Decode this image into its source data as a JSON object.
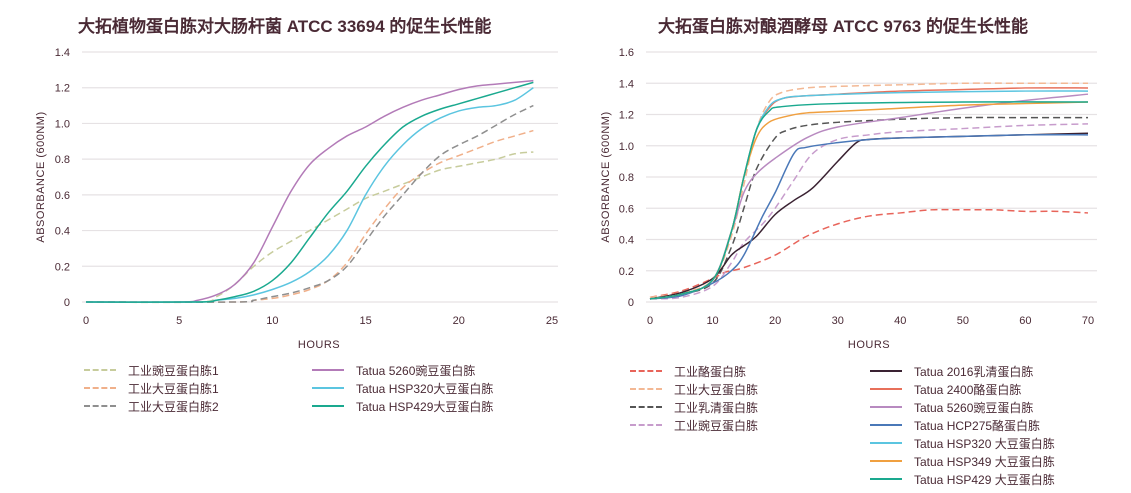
{
  "chart_data": [
    {
      "type": "line",
      "title": "大拓植物蛋白胨对大肠杆菌 ATCC 33694 的促生长性能",
      "xlabel": "HOURS",
      "ylabel": "ABSORBANCE (600NM)",
      "xlim": [
        0,
        25
      ],
      "ylim": [
        0,
        1.4
      ],
      "xticks": [
        0,
        5,
        10,
        15,
        20,
        25
      ],
      "yticks": [
        0,
        0.2,
        0.4,
        0.6,
        0.8,
        1.0,
        1.2,
        1.4
      ],
      "ytick_labels": [
        "0",
        "0.2",
        "0.4",
        "0.6",
        "0.8",
        "1.0",
        "1.2",
        "1.4"
      ],
      "grid": "horizontal",
      "legend": "bottom",
      "series": [
        {
          "name": "工业豌豆蛋白胨1",
          "style": "dashed",
          "color": "#c7cc9c",
          "x": [
            0,
            6,
            7,
            8,
            9,
            10,
            11,
            12,
            13,
            14,
            15,
            16,
            17,
            18,
            19,
            20,
            21,
            22,
            23,
            24
          ],
          "y": [
            0,
            0,
            0.03,
            0.1,
            0.2,
            0.28,
            0.34,
            0.4,
            0.46,
            0.52,
            0.58,
            0.62,
            0.66,
            0.7,
            0.74,
            0.76,
            0.78,
            0.8,
            0.83,
            0.84
          ]
        },
        {
          "name": "工业大豆蛋白胨1",
          "style": "dashed",
          "color": "#f0b08a",
          "x": [
            0,
            8,
            9,
            10,
            11,
            12,
            13,
            14,
            15,
            16,
            17,
            18,
            19,
            20,
            21,
            22,
            23,
            24
          ],
          "y": [
            0,
            0,
            0.01,
            0.02,
            0.04,
            0.07,
            0.12,
            0.22,
            0.38,
            0.52,
            0.64,
            0.72,
            0.78,
            0.82,
            0.86,
            0.9,
            0.93,
            0.96
          ]
        },
        {
          "name": "工业大豆蛋白胨2",
          "style": "dashed",
          "color": "#8f8f8f",
          "x": [
            0,
            8,
            9,
            10,
            11,
            12,
            13,
            14,
            15,
            16,
            17,
            18,
            19,
            20,
            21,
            22,
            23,
            24
          ],
          "y": [
            0,
            0,
            0.01,
            0.03,
            0.05,
            0.08,
            0.12,
            0.2,
            0.34,
            0.48,
            0.6,
            0.72,
            0.82,
            0.88,
            0.93,
            0.99,
            1.05,
            1.1
          ]
        },
        {
          "name": "Tatua 5260豌豆蛋白胨",
          "style": "solid",
          "color": "#b37bb8",
          "x": [
            0,
            5,
            6,
            7,
            8,
            9,
            10,
            11,
            12,
            13,
            14,
            15,
            16,
            17,
            18,
            19,
            20,
            21,
            22,
            23,
            24
          ],
          "y": [
            0,
            0,
            0.01,
            0.04,
            0.1,
            0.22,
            0.42,
            0.62,
            0.77,
            0.86,
            0.93,
            0.98,
            1.04,
            1.09,
            1.13,
            1.16,
            1.19,
            1.21,
            1.22,
            1.23,
            1.24
          ]
        },
        {
          "name": "Tatua HSP320大豆蛋白胨",
          "style": "solid",
          "color": "#5bc5e0",
          "x": [
            0,
            6,
            7,
            8,
            9,
            10,
            11,
            12,
            13,
            14,
            15,
            16,
            17,
            18,
            19,
            20,
            21,
            22,
            23,
            24
          ],
          "y": [
            0,
            0,
            0.01,
            0.02,
            0.04,
            0.07,
            0.11,
            0.17,
            0.26,
            0.4,
            0.6,
            0.76,
            0.88,
            0.97,
            1.03,
            1.07,
            1.09,
            1.1,
            1.13,
            1.2
          ]
        },
        {
          "name": "Tatua HSP429大豆蛋白胨",
          "style": "solid",
          "color": "#1aa98f",
          "x": [
            0,
            6,
            7,
            8,
            9,
            10,
            11,
            12,
            13,
            14,
            15,
            16,
            17,
            18,
            19,
            20,
            21,
            22,
            23,
            24
          ],
          "y": [
            0,
            0,
            0.01,
            0.03,
            0.06,
            0.12,
            0.22,
            0.36,
            0.5,
            0.62,
            0.76,
            0.88,
            0.98,
            1.04,
            1.08,
            1.11,
            1.14,
            1.17,
            1.2,
            1.23
          ]
        }
      ]
    },
    {
      "type": "line",
      "title": "大拓蛋白胨对酿酒酵母 ATCC 9763 的促生长性能",
      "xlabel": "HOURS",
      "ylabel": "ABSORBANCE (600NM)",
      "xlim": [
        0,
        70
      ],
      "ylim": [
        0,
        1.6
      ],
      "xticks": [
        0,
        10,
        20,
        30,
        40,
        50,
        60,
        70
      ],
      "yticks": [
        0,
        0.2,
        0.4,
        0.6,
        0.8,
        1.0,
        1.2,
        1.4,
        1.6
      ],
      "ytick_labels": [
        "0",
        "0.2",
        "0.4",
        "0.6",
        "0.8",
        "1.0",
        "1.2",
        "1.4",
        "1.6"
      ],
      "grid": "horizontal",
      "legend": "bottom",
      "series": [
        {
          "name": "工业酪蛋白胨",
          "style": "dashed",
          "color": "#e8645a",
          "x": [
            0,
            5,
            10,
            12,
            15,
            20,
            25,
            30,
            35,
            40,
            45,
            50,
            55,
            60,
            65,
            70
          ],
          "y": [
            0.03,
            0.07,
            0.15,
            0.19,
            0.22,
            0.3,
            0.42,
            0.5,
            0.55,
            0.57,
            0.59,
            0.59,
            0.59,
            0.58,
            0.58,
            0.57
          ]
        },
        {
          "name": "工业大豆蛋白胨",
          "style": "dashed",
          "color": "#f3b894",
          "x": [
            0,
            5,
            10,
            13,
            15,
            17,
            19,
            21,
            25,
            30,
            40,
            50,
            60,
            70
          ],
          "y": [
            0.03,
            0.06,
            0.14,
            0.42,
            0.75,
            1.1,
            1.28,
            1.34,
            1.37,
            1.38,
            1.39,
            1.4,
            1.4,
            1.4
          ]
        },
        {
          "name": "工业乳清蛋白胨",
          "style": "dashed",
          "color": "#555555",
          "x": [
            0,
            5,
            10,
            13,
            15,
            17,
            20,
            22,
            25,
            30,
            40,
            50,
            60,
            70
          ],
          "y": [
            0.02,
            0.05,
            0.12,
            0.35,
            0.6,
            0.85,
            1.05,
            1.1,
            1.13,
            1.15,
            1.17,
            1.18,
            1.18,
            1.18
          ]
        },
        {
          "name": "工业豌豆蛋白胨",
          "style": "dashed",
          "color": "#c79ccc",
          "x": [
            0,
            5,
            10,
            13,
            15,
            18,
            20,
            23,
            26,
            30,
            35,
            40,
            50,
            60,
            70
          ],
          "y": [
            0.02,
            0.03,
            0.1,
            0.25,
            0.38,
            0.5,
            0.6,
            0.78,
            0.95,
            1.04,
            1.07,
            1.09,
            1.11,
            1.13,
            1.14
          ]
        },
        {
          "name": "Tatua 2016乳清蛋白胨",
          "style": "solid",
          "color": "#3a2232",
          "x": [
            0,
            5,
            10,
            13,
            15,
            17,
            20,
            23,
            26,
            30,
            33,
            35,
            40,
            50,
            60,
            70
          ],
          "y": [
            0.02,
            0.06,
            0.15,
            0.3,
            0.36,
            0.42,
            0.56,
            0.65,
            0.73,
            0.9,
            1.02,
            1.04,
            1.05,
            1.06,
            1.07,
            1.08
          ]
        },
        {
          "name": "Tatua 2400酪蛋白胨",
          "style": "solid",
          "color": "#e8705a",
          "x": [
            0,
            5,
            10,
            13,
            15,
            17,
            19,
            21,
            25,
            30,
            40,
            50,
            60,
            70
          ],
          "y": [
            0.02,
            0.05,
            0.14,
            0.45,
            0.8,
            1.1,
            1.24,
            1.3,
            1.32,
            1.33,
            1.35,
            1.36,
            1.37,
            1.37
          ]
        },
        {
          "name": "Tatua 5260豌豆蛋白胨",
          "style": "solid",
          "color": "#b88ac0",
          "x": [
            0,
            5,
            10,
            13,
            15,
            17,
            20,
            25,
            30,
            40,
            50,
            60,
            70
          ],
          "y": [
            0.02,
            0.05,
            0.14,
            0.45,
            0.7,
            0.82,
            0.92,
            1.05,
            1.12,
            1.18,
            1.24,
            1.29,
            1.33
          ]
        },
        {
          "name": "Tatua HCP275酪蛋白胨",
          "style": "solid",
          "color": "#4a78b8",
          "x": [
            0,
            5,
            10,
            13,
            15,
            18,
            20,
            23,
            25,
            30,
            35,
            40,
            50,
            60,
            70
          ],
          "y": [
            0.02,
            0.04,
            0.12,
            0.2,
            0.3,
            0.55,
            0.7,
            0.95,
            0.99,
            1.02,
            1.04,
            1.05,
            1.06,
            1.07,
            1.07
          ]
        },
        {
          "name": "Tatua HSP320 大豆蛋白胨",
          "style": "solid",
          "color": "#5bc5e0",
          "x": [
            0,
            5,
            10,
            13,
            15,
            17,
            19,
            21,
            25,
            40,
            60,
            70
          ],
          "y": [
            0.02,
            0.05,
            0.14,
            0.45,
            0.8,
            1.1,
            1.25,
            1.3,
            1.32,
            1.34,
            1.35,
            1.35
          ]
        },
        {
          "name": "Tatua HSP349 大豆蛋白胨",
          "style": "solid",
          "color": "#f0a040",
          "x": [
            0,
            5,
            10,
            13,
            15,
            17,
            19,
            22,
            25,
            30,
            40,
            50,
            60,
            70
          ],
          "y": [
            0.02,
            0.05,
            0.14,
            0.45,
            0.8,
            1.05,
            1.15,
            1.19,
            1.21,
            1.22,
            1.24,
            1.26,
            1.27,
            1.28
          ]
        },
        {
          "name": "Tatua HSP429 大豆蛋白胨",
          "style": "solid",
          "color": "#1aa98f",
          "x": [
            0,
            5,
            10,
            13,
            15,
            17,
            19,
            21,
            30,
            50,
            70
          ],
          "y": [
            0.02,
            0.05,
            0.14,
            0.45,
            0.8,
            1.1,
            1.22,
            1.25,
            1.27,
            1.28,
            1.28
          ]
        }
      ]
    }
  ]
}
